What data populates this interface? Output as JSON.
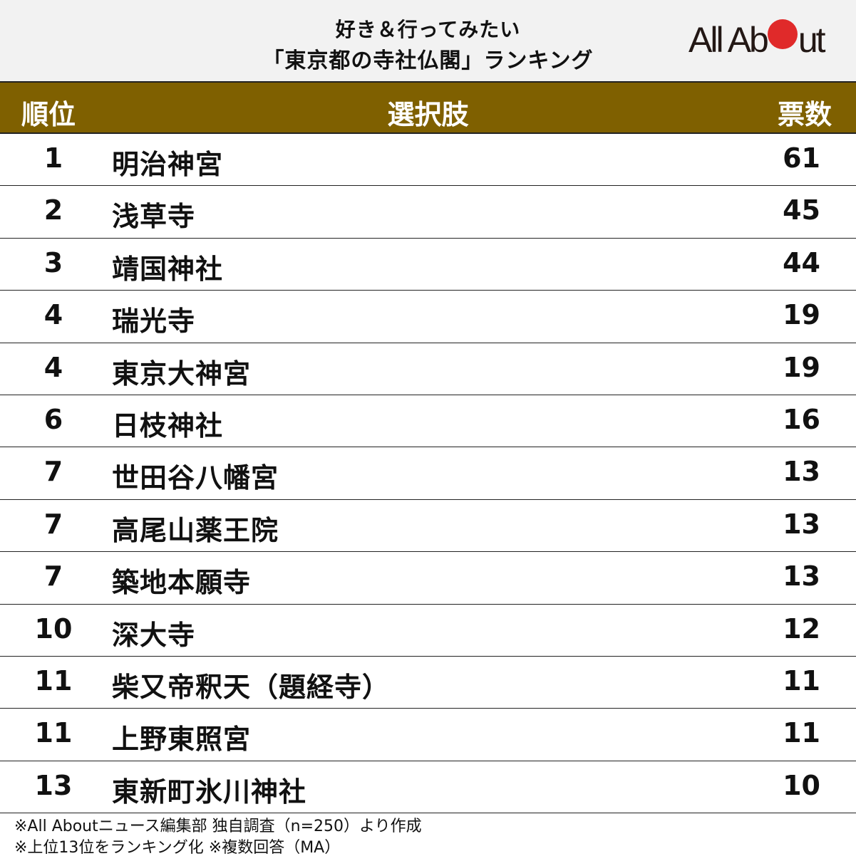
{
  "header": {
    "title_line1": "好き＆行ってみたい",
    "title_line2": "「東京都の寺社仏閣」ランキング",
    "logo": {
      "text_before": "All Ab",
      "text_after": "ut",
      "dot_color": "#e02a2a"
    }
  },
  "table": {
    "columns": {
      "rank": "順位",
      "name": "選択肢",
      "votes": "票数"
    },
    "header_color": "#7f6000"
  },
  "chart_data": {
    "type": "table",
    "title": "好き＆行ってみたい「東京都の寺社仏閣」ランキング",
    "columns": [
      "順位",
      "選択肢",
      "票数"
    ],
    "rows": [
      {
        "rank": "1",
        "name": "明治神宮",
        "votes": "61"
      },
      {
        "rank": "2",
        "name": "浅草寺",
        "votes": "45"
      },
      {
        "rank": "3",
        "name": "靖国神社",
        "votes": "44"
      },
      {
        "rank": "4",
        "name": "瑞光寺",
        "votes": "19"
      },
      {
        "rank": "4",
        "name": "東京大神宮",
        "votes": "19"
      },
      {
        "rank": "6",
        "name": "日枝神社",
        "votes": "16"
      },
      {
        "rank": "7",
        "name": "世田谷八幡宮",
        "votes": "13"
      },
      {
        "rank": "7",
        "name": "高尾山薬王院",
        "votes": "13"
      },
      {
        "rank": "7",
        "name": "築地本願寺",
        "votes": "13"
      },
      {
        "rank": "10",
        "name": "深大寺",
        "votes": "12"
      },
      {
        "rank": "11",
        "name": "柴又帝釈天（題経寺）",
        "votes": "11"
      },
      {
        "rank": "11",
        "name": "上野東照宮",
        "votes": "11"
      },
      {
        "rank": "13",
        "name": "東新町氷川神社",
        "votes": "10"
      }
    ]
  },
  "footer": {
    "note1": "※All Aboutニュース編集部 独自調査（n=250）より作成",
    "note2": "※上位13位をランキング化 ※複数回答（MA）"
  }
}
